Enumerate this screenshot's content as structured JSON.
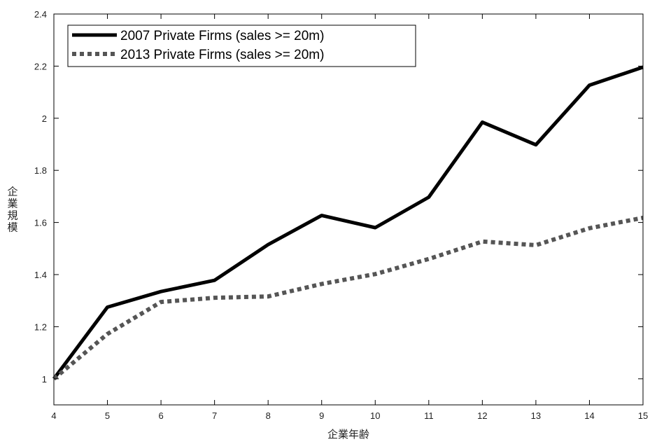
{
  "chart_data": {
    "type": "line",
    "title": "",
    "xlabel": "企業年齢",
    "ylabel": "企業規模",
    "xlim": [
      4,
      15
    ],
    "ylim": [
      0.9,
      2.4
    ],
    "x": [
      4,
      5,
      6,
      7,
      8,
      9,
      10,
      11,
      12,
      13,
      14,
      15
    ],
    "x_ticks": [
      "4",
      "5",
      "6",
      "7",
      "8",
      "9",
      "10",
      "11",
      "12",
      "13",
      "14",
      "15"
    ],
    "y_ticks": [
      {
        "value": 1.0,
        "label": "1"
      },
      {
        "value": 1.2,
        "label": "1.2"
      },
      {
        "value": 1.4,
        "label": "1.4"
      },
      {
        "value": 1.6,
        "label": "1.6"
      },
      {
        "value": 1.8,
        "label": "1.8"
      },
      {
        "value": 2.0,
        "label": "2"
      },
      {
        "value": 2.2,
        "label": "2.2"
      },
      {
        "value": 2.4,
        "label": "2.4"
      }
    ],
    "grid": false,
    "legend_position": "top-left",
    "series": [
      {
        "name": "2007 Private Firms (sales >= 20m)",
        "style": "solid",
        "color": "#000000",
        "values": [
          1.0,
          1.275,
          1.335,
          1.378,
          1.515,
          1.627,
          1.58,
          1.697,
          1.985,
          1.898,
          2.127,
          2.196
        ]
      },
      {
        "name": "2013 Private Firms (sales >= 20m)",
        "style": "dotted",
        "color": "#555555",
        "values": [
          1.0,
          1.172,
          1.295,
          1.311,
          1.316,
          1.364,
          1.402,
          1.46,
          1.527,
          1.513,
          1.578,
          1.618
        ]
      }
    ]
  }
}
